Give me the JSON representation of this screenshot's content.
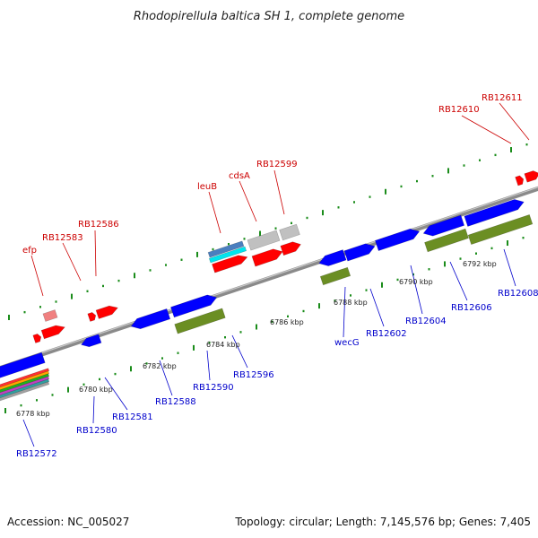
{
  "title": "Rhodopirellula baltica SH 1, complete genome",
  "footer": {
    "accession": "Accession: NC_005027",
    "summary": "Topology: circular; Length: 7,145,576 bp; Genes: 7,405"
  },
  "colors": {
    "forward_label": "#cc0000",
    "reverse_label": "#0000cc",
    "forward_cds": "#ff0000",
    "reverse_cds": "#0000ff",
    "rrna_like": "#6b8e23",
    "pseudo": "#c0c0c0",
    "backbone": "#808080",
    "tick": "#1a8c1a"
  },
  "scale_labels": [
    "6778 kbp",
    "6780 kbp",
    "6782 kbp",
    "6784 kbp",
    "6786 kbp",
    "6788 kbp",
    "6790 kbp",
    "6792 kbp"
  ],
  "forward_gene_labels": [
    "efp",
    "RB12583",
    "RB12586",
    "leuB",
    "cdsA",
    "RB12599",
    "RB12610",
    "RB12611"
  ],
  "reverse_gene_labels": [
    "RB12572",
    "RB12580",
    "RB12581",
    "RB12588",
    "RB12590",
    "RB12596",
    "wecG",
    "RB12602",
    "RB12604",
    "RB12606",
    "RB12608"
  ]
}
